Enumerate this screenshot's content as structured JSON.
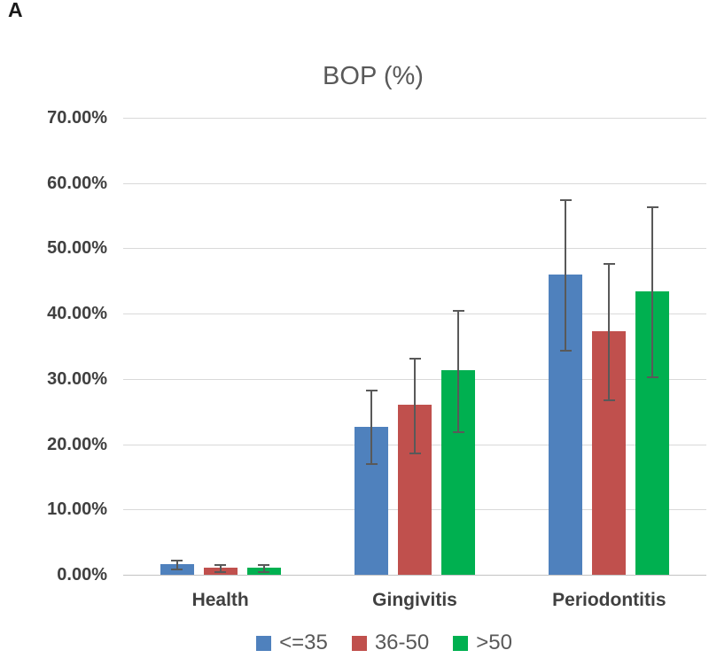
{
  "panel_label": "A",
  "chart_data": {
    "type": "bar",
    "title": "BOP (%)",
    "categories": [
      "Health",
      "Gingivitis",
      "Periodontitis"
    ],
    "series": [
      {
        "name": "<=35",
        "color": "#4F81BD",
        "values": [
          1.6,
          22.7,
          46.0
        ],
        "errors": [
          0.7,
          5.6,
          11.5
        ]
      },
      {
        "name": "36-50",
        "color": "#C0504D",
        "values": [
          1.1,
          26.0,
          37.3
        ],
        "errors": [
          0.5,
          7.3,
          10.4
        ]
      },
      {
        "name": ">50",
        "color": "#00B050",
        "values": [
          1.1,
          31.3,
          43.4
        ],
        "errors": [
          0.5,
          9.3,
          13.0
        ]
      }
    ],
    "ylabel": "",
    "xlabel": "",
    "ylim": [
      0,
      70
    ],
    "ytick_step": 10,
    "ytick_labels": [
      "0.00%",
      "10.00%",
      "20.00%",
      "30.00%",
      "40.00%",
      "50.00%",
      "60.00%",
      "70.00%"
    ],
    "grid": true,
    "legend_position": "bottom",
    "error_bars": true,
    "value_format": "percent"
  },
  "colors": {
    "gridline": "#D9D9D9",
    "axis_line": "#C3C3C3",
    "error_bar": "#595959",
    "title_text": "#595959",
    "axis_label_text": "#404040",
    "legend_text": "#595959"
  }
}
